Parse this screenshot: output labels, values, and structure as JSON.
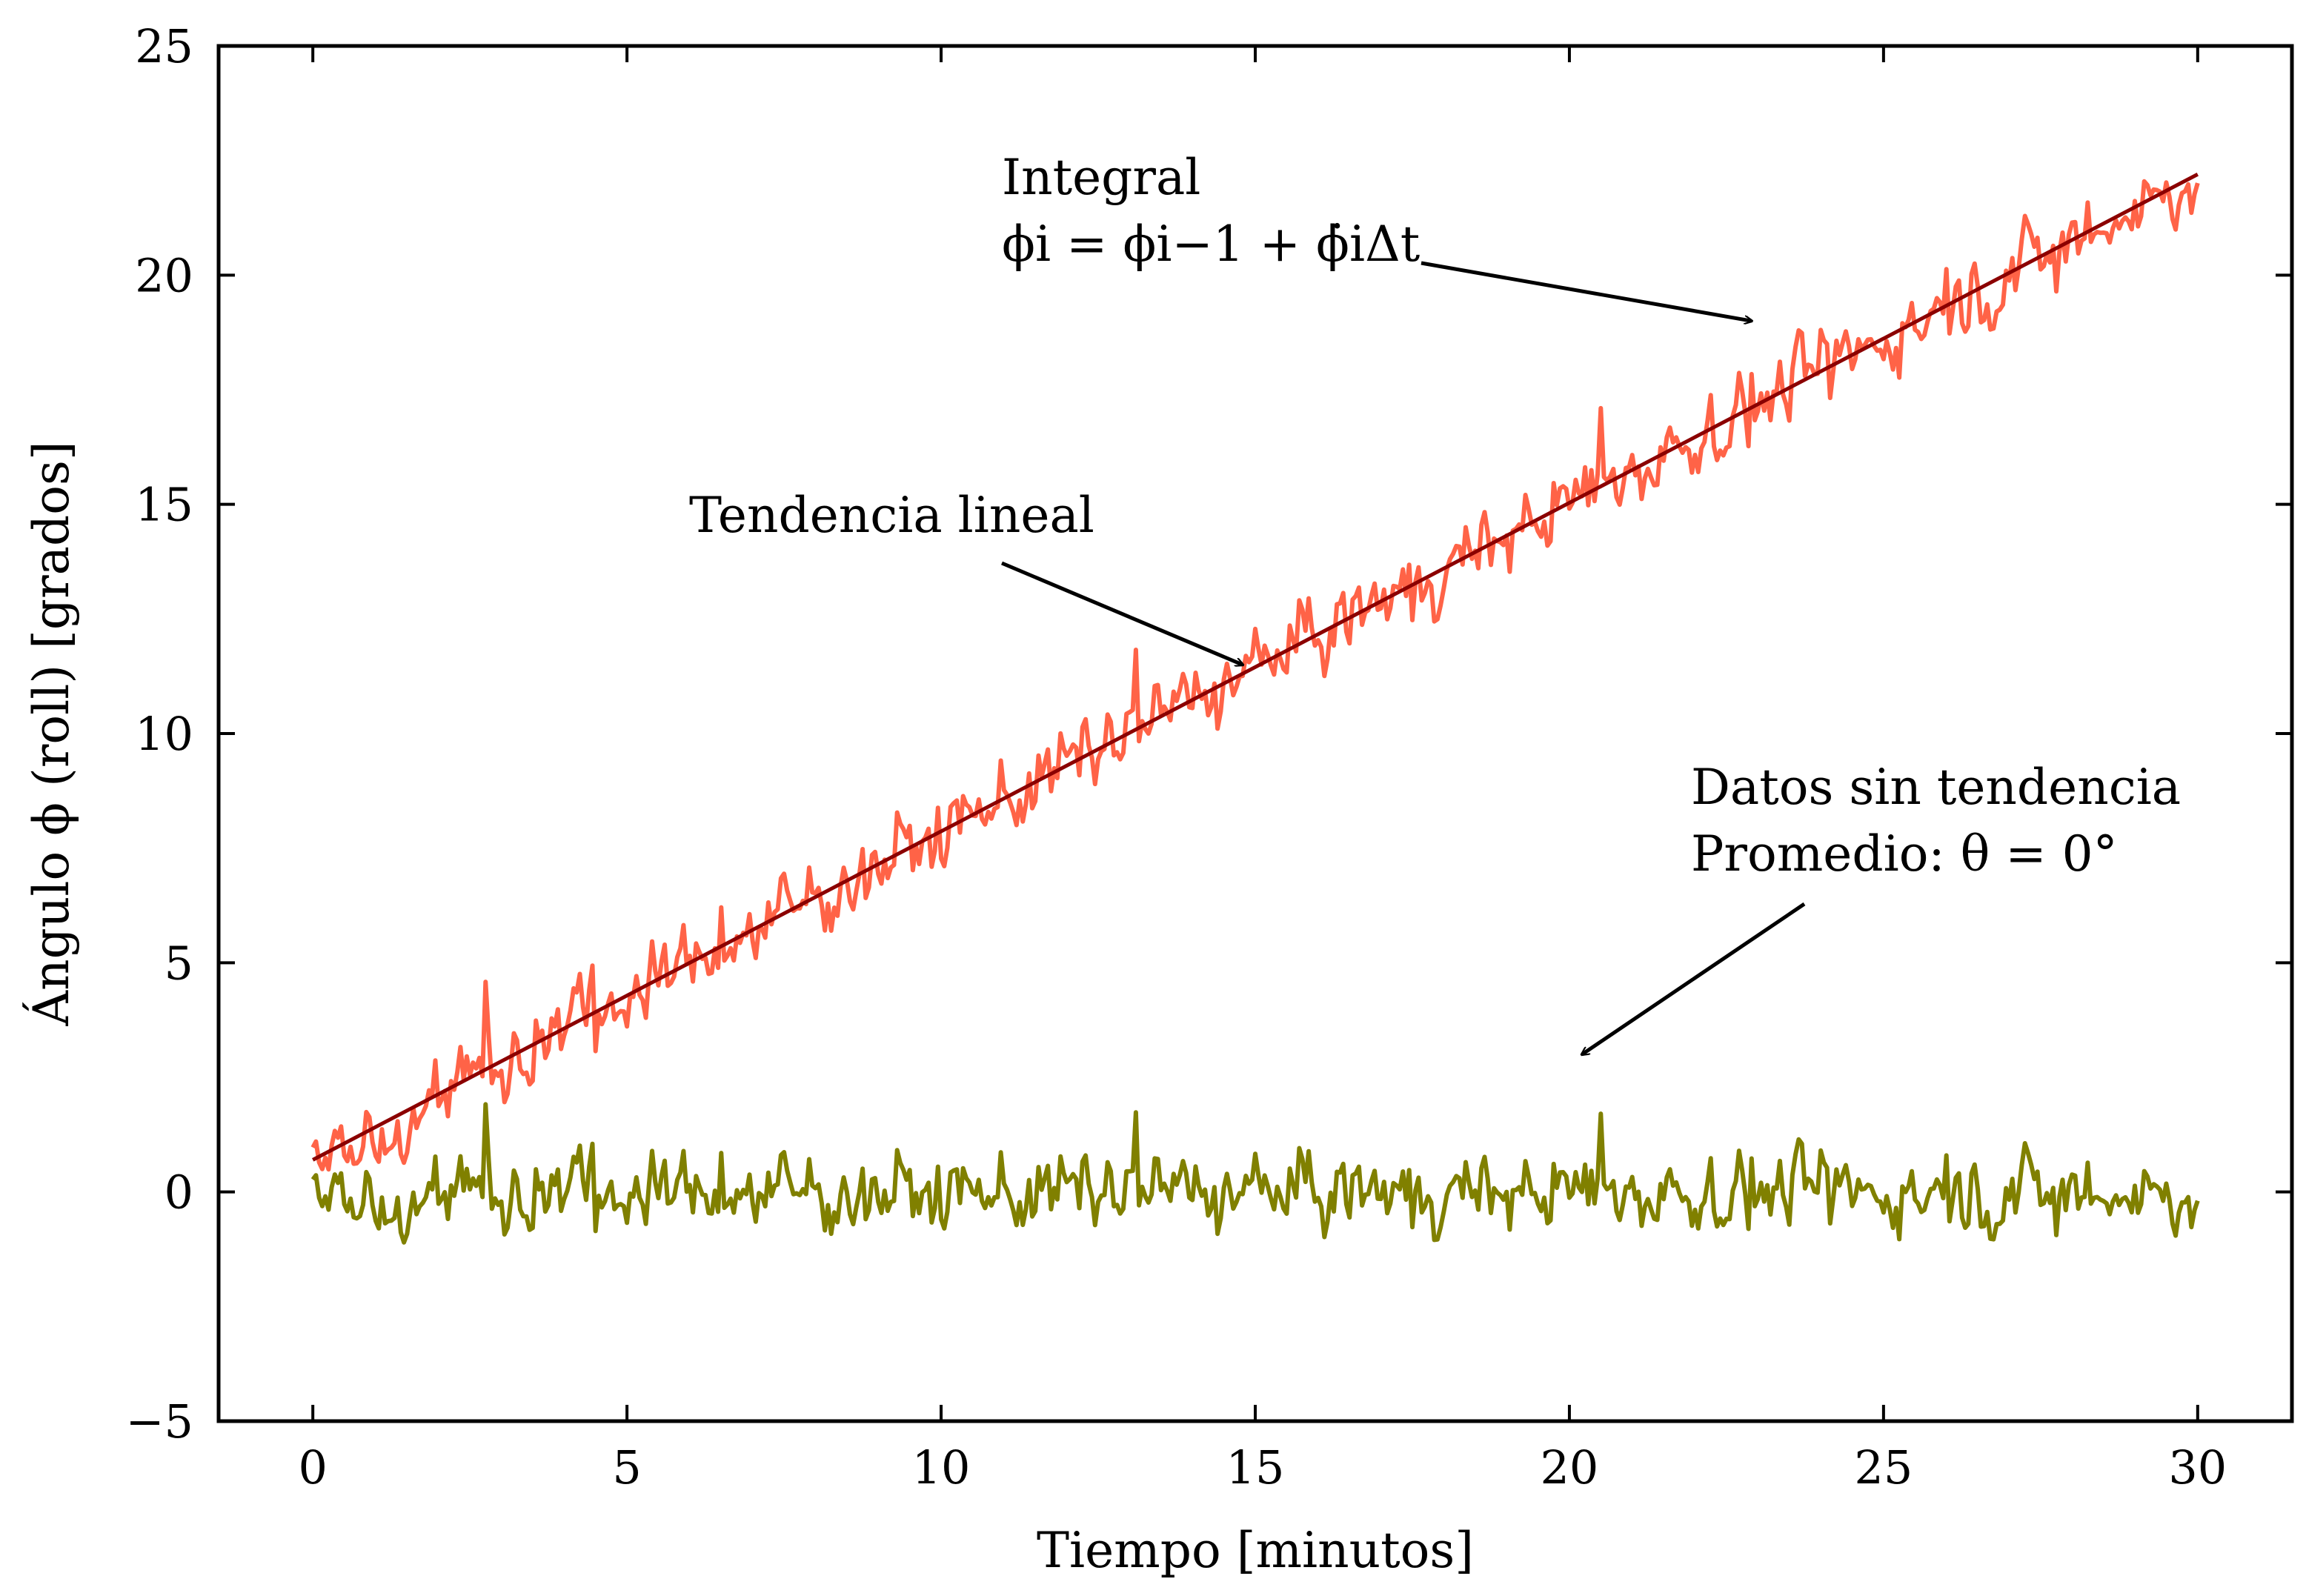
{
  "chart_data": {
    "type": "line",
    "title": "",
    "xlabel": "Tiempo [minutos]",
    "ylabel": "Ángulo ϕ (roll) [grados]",
    "xlim": [
      -1.5,
      31.5
    ],
    "ylim": [
      -5,
      25
    ],
    "xticks": [
      0,
      5,
      10,
      15,
      20,
      25,
      30
    ],
    "yticks": [
      -5,
      0,
      5,
      10,
      15,
      20,
      25
    ],
    "xtick_labels": [
      "0",
      "5",
      "10",
      "15",
      "20",
      "25",
      "30"
    ],
    "ytick_labels": [
      "−5",
      "0",
      "5",
      "10",
      "15",
      "20",
      "25"
    ],
    "grid": false,
    "sample_interval": 0.05,
    "series": [
      {
        "color": "#ff6347",
        "x_start": 0,
        "x_end": 30,
        "trend_start": 0.7,
        "trend_end": 22.2,
        "noise_amplitude": 1.2,
        "max_value": 23.9,
        "min_value": 0.0
      },
      {
        "color": "#8b0000",
        "x": [
          0,
          30
        ],
        "values": [
          0.7,
          22.2
        ]
      },
      {
        "color": "#808000",
        "x_start": 0,
        "x_end": 30,
        "mean": 0,
        "noise_amplitude": 1.2,
        "max_value": 3.2,
        "min_value": -2.6
      }
    ],
    "annotations": [
      {
        "lines": [
          "Integral",
          "ϕi = ϕi−1 + ϕ̇iΔt"
        ],
        "arrow_to": [
          22.9,
          19.0
        ]
      },
      {
        "lines": [
          "Tendencia lineal"
        ],
        "arrow_to": [
          14.8,
          11.5
        ]
      },
      {
        "lines": [
          "Datos sin tendencia",
          "Promedio: θ = 0°"
        ],
        "arrow_to": [
          20.2,
          3.0
        ]
      }
    ]
  }
}
